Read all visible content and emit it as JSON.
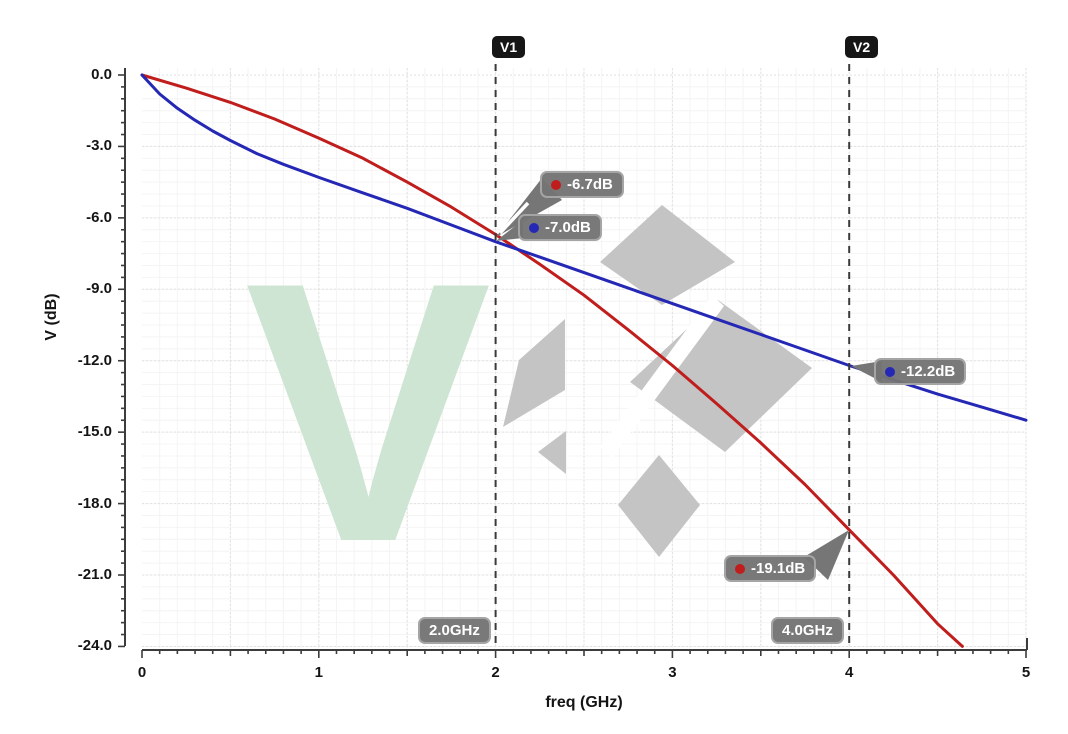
{
  "watermark": {
    "letter": "V"
  },
  "colors": {
    "red_trace": "#c01d1d",
    "blue_trace": "#2428b4",
    "cursor_line": "#3a3a3a",
    "badge_gray": "#767676",
    "cursor_tag_bg": "#161616",
    "grid_major": "#e2e2e2",
    "grid_minor": "#f4f4f4",
    "axis": "#3c3c3c",
    "watermark_green": "#cfe5d3",
    "watermark_gray": "#c4c4c4"
  },
  "chart_data": {
    "type": "line",
    "title": "",
    "xlabel": "freq (GHz)",
    "ylabel": "V (dB)",
    "xlim": [
      0,
      5
    ],
    "ylim": [
      -24,
      0
    ],
    "grid": true,
    "legend": "none",
    "x_ticks": [
      "0",
      "1",
      "2",
      "3",
      "4",
      "5"
    ],
    "y_ticks": [
      "0.0",
      "-3.0",
      "-6.0",
      "-9.0",
      "-12.0",
      "-15.0",
      "-18.0",
      "-21.0",
      "-24.0"
    ],
    "series": [
      {
        "name": "red-trace",
        "color": "#c01d1d",
        "points": [
          [
            0,
            0
          ],
          [
            0.25,
            -0.55
          ],
          [
            0.5,
            -1.15
          ],
          [
            0.75,
            -1.85
          ],
          [
            1,
            -2.65
          ],
          [
            1.25,
            -3.5
          ],
          [
            1.5,
            -4.5
          ],
          [
            1.75,
            -5.55
          ],
          [
            2,
            -6.7
          ],
          [
            2.25,
            -7.95
          ],
          [
            2.5,
            -9.25
          ],
          [
            2.75,
            -10.7
          ],
          [
            3,
            -12.2
          ],
          [
            3.25,
            -13.8
          ],
          [
            3.5,
            -15.45
          ],
          [
            3.75,
            -17.2
          ],
          [
            4,
            -19.1
          ],
          [
            4.25,
            -21.0
          ],
          [
            4.5,
            -23.05
          ],
          [
            4.64,
            -24.0
          ]
        ]
      },
      {
        "name": "blue-trace",
        "color": "#2428b4",
        "points": [
          [
            0,
            0
          ],
          [
            0.1,
            -0.8
          ],
          [
            0.2,
            -1.4
          ],
          [
            0.3,
            -1.9
          ],
          [
            0.4,
            -2.35
          ],
          [
            0.5,
            -2.75
          ],
          [
            0.65,
            -3.3
          ],
          [
            0.8,
            -3.75
          ],
          [
            1,
            -4.3
          ],
          [
            1.25,
            -4.95
          ],
          [
            1.5,
            -5.6
          ],
          [
            1.75,
            -6.3
          ],
          [
            2,
            -7.0
          ],
          [
            2.25,
            -7.65
          ],
          [
            2.5,
            -8.3
          ],
          [
            2.75,
            -8.95
          ],
          [
            3,
            -9.6
          ],
          [
            3.25,
            -10.25
          ],
          [
            3.5,
            -10.9
          ],
          [
            3.75,
            -11.55
          ],
          [
            4,
            -12.2
          ],
          [
            4.25,
            -12.8
          ],
          [
            4.5,
            -13.4
          ],
          [
            4.75,
            -13.95
          ],
          [
            5,
            -14.5
          ]
        ]
      }
    ],
    "cursors": [
      {
        "id": "V1",
        "label": "V1",
        "freq_ghz": 2.0,
        "freq_label": "2.0GHz",
        "values": [
          {
            "series": "red-trace",
            "label": "-6.7dB",
            "value_db": -6.7
          },
          {
            "series": "blue-trace",
            "label": "-7.0dB",
            "value_db": -7.0
          }
        ]
      },
      {
        "id": "V2",
        "label": "V2",
        "freq_ghz": 4.0,
        "freq_label": "4.0GHz",
        "values": [
          {
            "series": "blue-trace",
            "label": "-12.2dB",
            "value_db": -12.2
          },
          {
            "series": "red-trace",
            "label": "-19.1dB",
            "value_db": -19.1
          }
        ]
      }
    ]
  }
}
